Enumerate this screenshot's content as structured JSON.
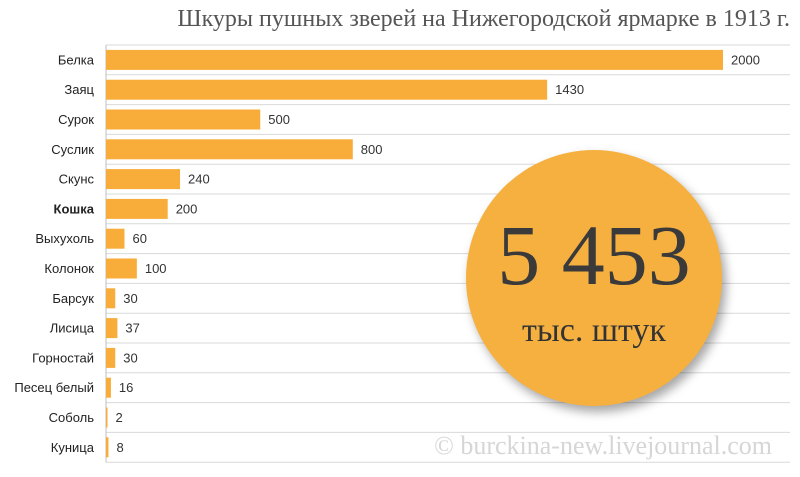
{
  "chart_data": {
    "type": "bar",
    "orientation": "horizontal",
    "title": "Шкуры пушных зверей на Нижегородской ярмарке в 1913 г.",
    "categories": [
      "Белка",
      "Заяц",
      "Сурок",
      "Суслик",
      "Скунс",
      "Кошка",
      "Выхухоль",
      "Колонок",
      "Барсук",
      "Лисица",
      "Горностай",
      "Песец белый",
      "Соболь",
      "Куница"
    ],
    "values": [
      2000,
      1430,
      500,
      800,
      240,
      200,
      60,
      100,
      30,
      37,
      30,
      16,
      2,
      8
    ],
    "bold_categories": [
      "Кошка"
    ],
    "xlim": [
      0,
      2000
    ],
    "grid": "horizontal",
    "bar_color": "#f8ad3a"
  },
  "callout": {
    "number": "5 453",
    "unit": "тыс. штук",
    "color": "#f6b040"
  },
  "watermark": "© burckina-new.livejournal.com"
}
